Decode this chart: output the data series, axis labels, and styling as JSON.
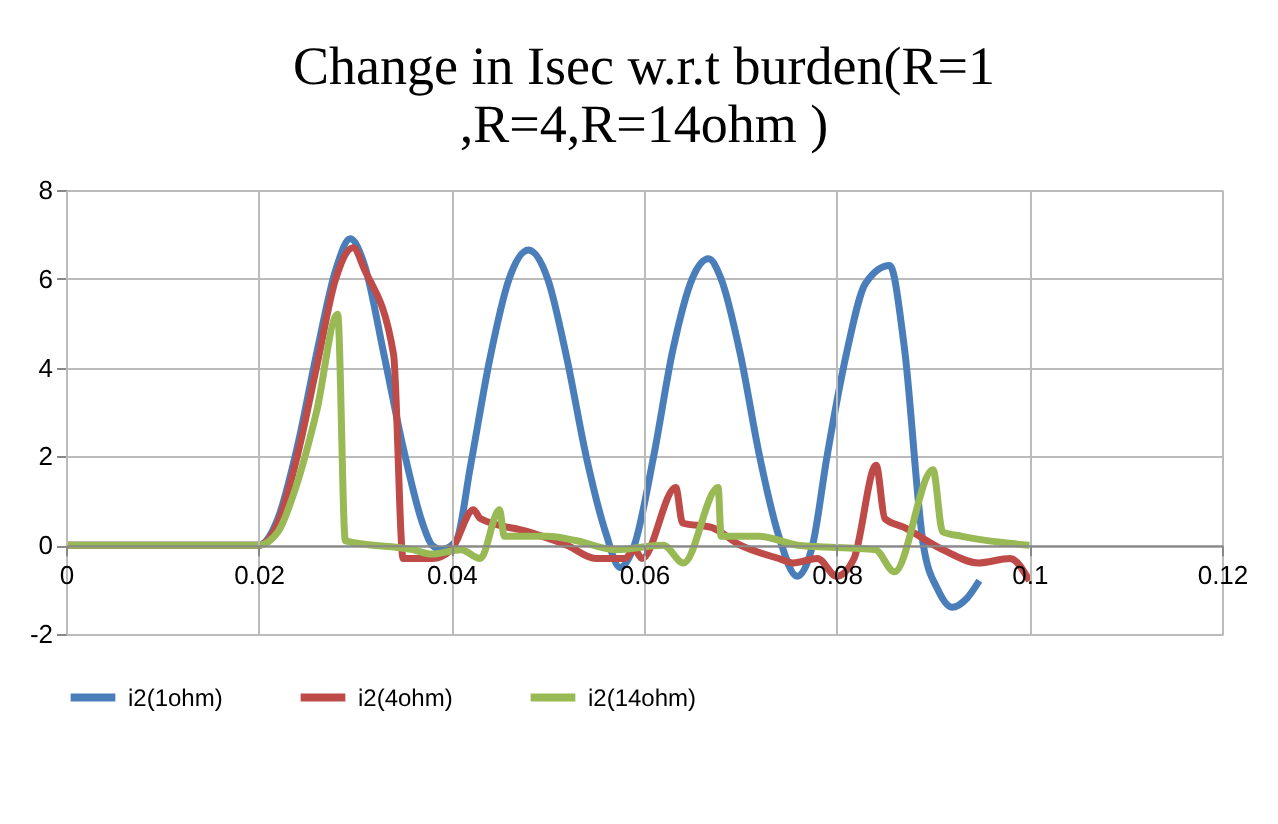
{
  "chart_data": {
    "type": "line",
    "title": "Change in Isec w.r.t burden(R=1\n,R=4,R=14ohm )",
    "xlim": [
      0,
      0.12
    ],
    "xticks": [
      0,
      0.02,
      0.04,
      0.06,
      0.08,
      0.1,
      0.12
    ],
    "ylim": [
      -2,
      8
    ],
    "yticks": [
      -2,
      0,
      2,
      4,
      6,
      8
    ],
    "grid": true,
    "legend": "bottom",
    "marker": "none",
    "line_style": "solid",
    "series": [
      {
        "name": "i2(1ohm)",
        "color": "#4a7ebb",
        "x": [
          0,
          0.02,
          0.022,
          0.024,
          0.026,
          0.028,
          0.0295,
          0.031,
          0.033,
          0.035,
          0.037,
          0.038,
          0.039,
          0.0405,
          0.042,
          0.044,
          0.046,
          0.048,
          0.05,
          0.052,
          0.054,
          0.056,
          0.0575,
          0.059,
          0.061,
          0.063,
          0.065,
          0.0667,
          0.068,
          0.07,
          0.072,
          0.074,
          0.0759,
          0.0775,
          0.079,
          0.081,
          0.083,
          0.0855,
          0.087,
          0.089,
          0.0905,
          0.092,
          0.0935,
          0.0948
        ],
        "values": [
          0,
          0,
          0.6,
          2.2,
          4.3,
          6.2,
          6.9,
          6.3,
          4.3,
          2.2,
          0.5,
          0,
          -0.1,
          0.1,
          1.8,
          4.2,
          6.0,
          6.65,
          6.0,
          4.2,
          2.0,
          0.3,
          -0.5,
          0,
          2.0,
          4.4,
          6.0,
          6.45,
          6.0,
          4.3,
          2.0,
          0.2,
          -0.7,
          0,
          2.0,
          4.3,
          5.9,
          6.3,
          4.5,
          0,
          -1.0,
          -1.4,
          -1.2,
          -0.8
        ]
      },
      {
        "name": "i2(4ohm)",
        "color": "#be4b48",
        "x": [
          0,
          0.02,
          0.022,
          0.024,
          0.026,
          0.028,
          0.0298,
          0.031,
          0.034,
          0.035,
          0.038,
          0.04,
          0.0423,
          0.043,
          0.048,
          0.052,
          0.055,
          0.058,
          0.059,
          0.0598,
          0.0633,
          0.064,
          0.067,
          0.07,
          0.074,
          0.0755,
          0.078,
          0.08,
          0.0818,
          0.0841,
          0.085,
          0.087,
          0.091,
          0.0947,
          0.098,
          0.1
        ],
        "values": [
          0,
          0,
          0.5,
          2.0,
          4.0,
          6.0,
          6.7,
          6.2,
          4.3,
          -0.3,
          -0.3,
          -0.1,
          0.8,
          0.6,
          0.3,
          0,
          -0.3,
          -0.3,
          -0.1,
          -0.3,
          1.3,
          0.5,
          0.4,
          0,
          -0.3,
          -0.4,
          -0.3,
          -0.7,
          -0.3,
          1.8,
          0.6,
          0.4,
          -0.1,
          -0.4,
          -0.3,
          -0.8
        ]
      },
      {
        "name": "i2(14ohm)",
        "color": "#98b954",
        "x": [
          0,
          0.02,
          0.022,
          0.024,
          0.026,
          0.0282,
          0.029,
          0.036,
          0.038,
          0.041,
          0.043,
          0.045,
          0.0455,
          0.05,
          0.053,
          0.057,
          0.062,
          0.0641,
          0.0677,
          0.068,
          0.072,
          0.076,
          0.084,
          0.086,
          0.09,
          0.091,
          0.093,
          0.1
        ],
        "values": [
          0,
          0,
          0.3,
          1.4,
          3.0,
          5.2,
          0.1,
          -0.1,
          -0.2,
          -0.1,
          -0.3,
          0.8,
          0.2,
          0.2,
          0.1,
          -0.1,
          0,
          -0.4,
          1.3,
          0.2,
          0.2,
          0,
          -0.1,
          -0.6,
          1.7,
          0.3,
          0.2,
          0
        ]
      }
    ]
  }
}
